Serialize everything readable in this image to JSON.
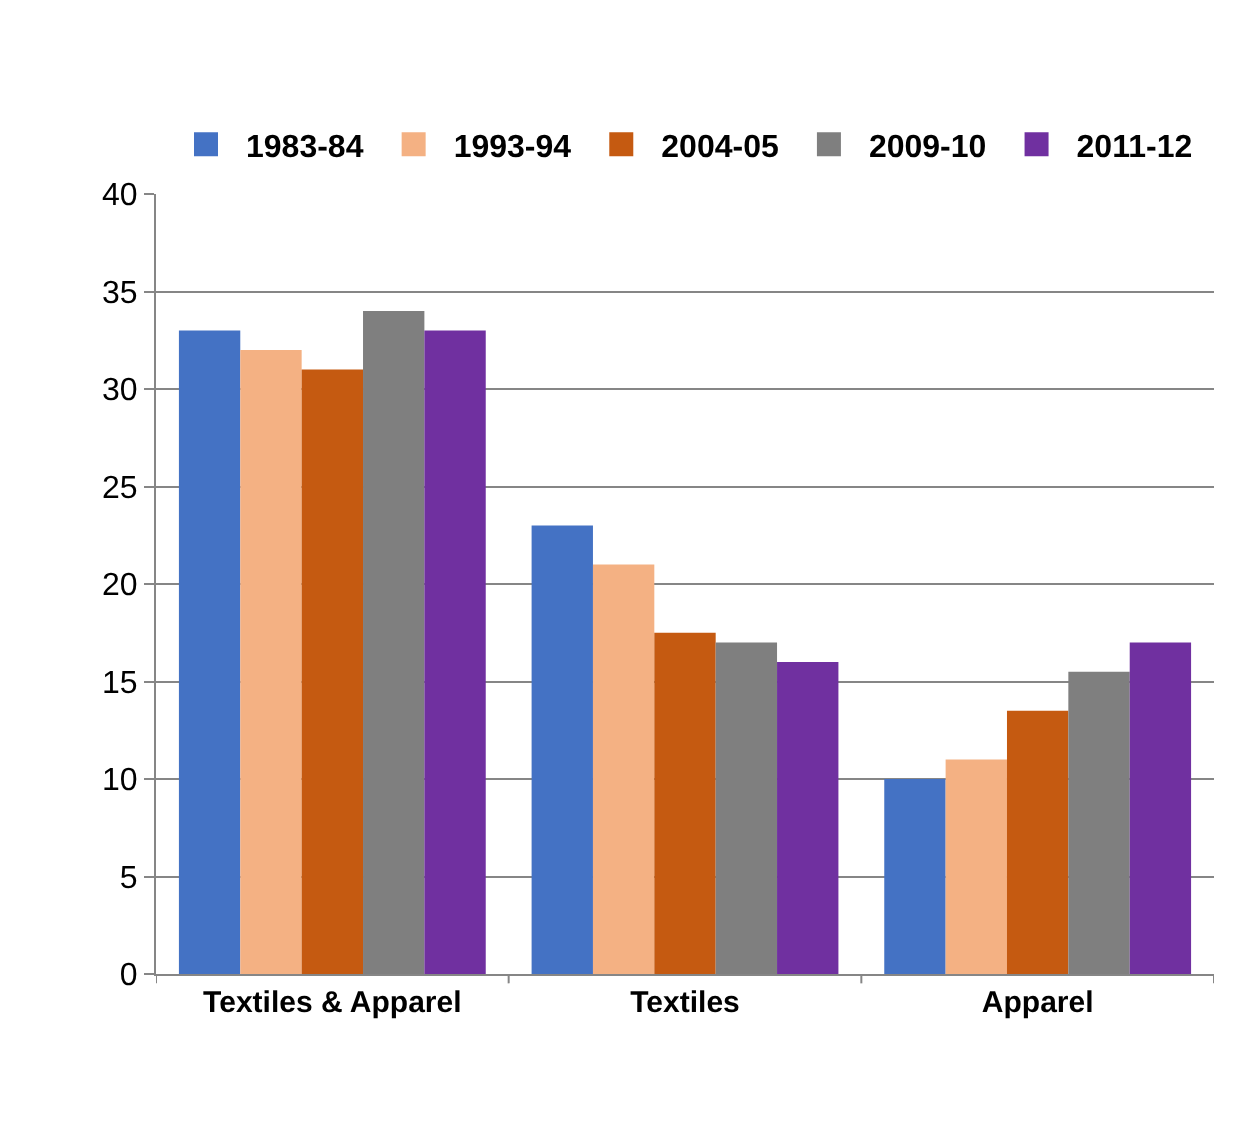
{
  "chart_data": {
    "type": "bar",
    "categories": [
      "Textiles & Apparel",
      "Textiles",
      "Apparel"
    ],
    "series": [
      {
        "name": "1983-84",
        "color": "#4472c4",
        "values": [
          33,
          23,
          10
        ]
      },
      {
        "name": "1993-94",
        "color": "#f4b183",
        "values": [
          32,
          21,
          11
        ]
      },
      {
        "name": "2004-05",
        "color": "#c55a11",
        "values": [
          31,
          17.5,
          13.5
        ]
      },
      {
        "name": "2009-10",
        "color": "#7f7f7f",
        "values": [
          34,
          17,
          15.5
        ]
      },
      {
        "name": "2011-12",
        "color": "#7030a0",
        "values": [
          33,
          16,
          17
        ]
      }
    ],
    "ylim": [
      0,
      40
    ],
    "yticks": [
      0,
      5,
      10,
      15,
      20,
      25,
      30,
      35,
      40
    ],
    "grid": "y",
    "legend": "top"
  }
}
